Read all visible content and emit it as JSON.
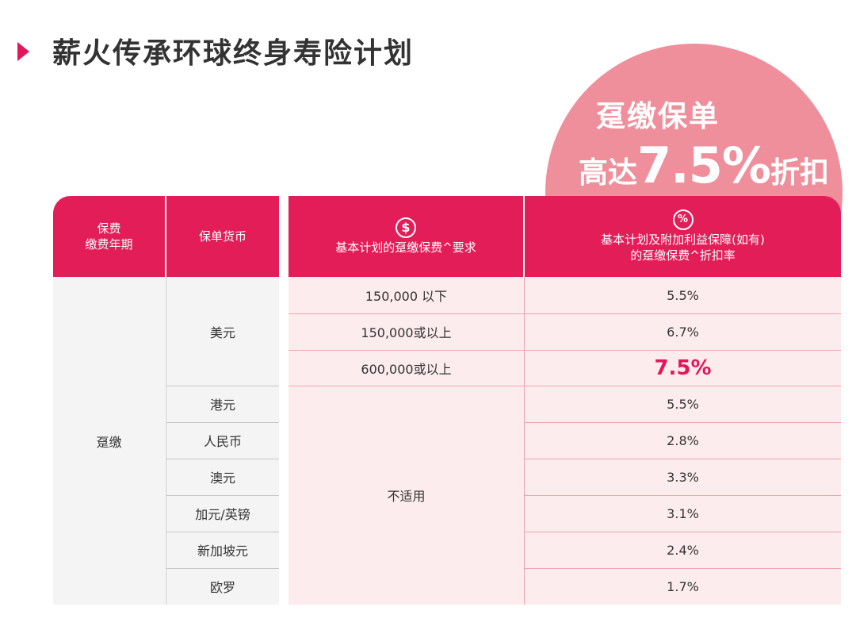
{
  "header": {
    "title": "薪火传承环球终身寿险计划"
  },
  "promo": {
    "line1": "趸缴保单",
    "line2_prefix": "高达",
    "line2_value": "7.5%",
    "line2_suffix": "折扣"
  },
  "table": {
    "headers": {
      "col1_line1": "保费",
      "col1_line2": "缴费年期",
      "col2": "保单货币",
      "col3_icon": "dollar-icon",
      "col3": "基本计划的趸缴保费^要求",
      "col4_icon": "percent-icon",
      "col4_line1": "基本计划及附加利益保障(如有)",
      "col4_line2": "的趸缴保费^折扣率"
    },
    "payment_term": "趸缴",
    "usd_currency": "美元",
    "usd_tiers": [
      {
        "requirement": "150,000 以下",
        "rate": "5.5%"
      },
      {
        "requirement": "150,000或以上",
        "rate": "6.7%"
      },
      {
        "requirement": "600,000或以上",
        "rate": "7.5%"
      }
    ],
    "other_requirement": "不适用",
    "other_currencies": [
      {
        "currency": "港元",
        "rate": "5.5%"
      },
      {
        "currency": "人民币",
        "rate": "2.8%"
      },
      {
        "currency": "澳元",
        "rate": "3.3%"
      },
      {
        "currency": "加元/英镑",
        "rate": "3.1%"
      },
      {
        "currency": "新加坡元",
        "rate": "2.4%"
      },
      {
        "currency": "欧罗",
        "rate": "1.7%"
      }
    ]
  }
}
